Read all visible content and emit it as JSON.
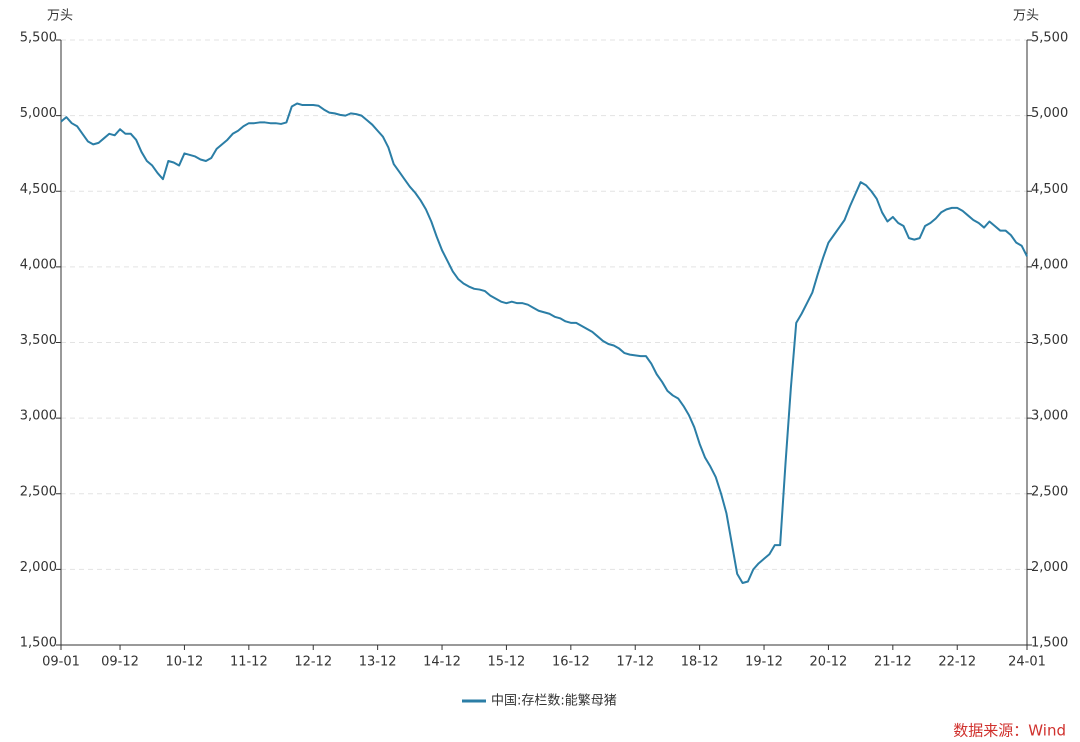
{
  "chart_data": {
    "type": "line",
    "y_unit": "万头",
    "y2_unit": "万头",
    "source": "数据来源：Wind",
    "categories": [
      "09-01",
      null,
      null,
      null,
      null,
      null,
      null,
      null,
      null,
      null,
      null,
      "09-12",
      null,
      null,
      null,
      null,
      null,
      null,
      null,
      null,
      null,
      null,
      null,
      "10-12",
      null,
      null,
      null,
      null,
      null,
      null,
      null,
      null,
      null,
      null,
      null,
      "11-12",
      null,
      null,
      null,
      null,
      null,
      null,
      null,
      null,
      null,
      null,
      null,
      "12-12",
      null,
      null,
      null,
      null,
      null,
      null,
      null,
      null,
      null,
      null,
      null,
      "13-12",
      null,
      null,
      null,
      null,
      null,
      null,
      null,
      null,
      null,
      null,
      null,
      "14-12",
      null,
      null,
      null,
      null,
      null,
      null,
      null,
      null,
      null,
      null,
      null,
      "15-12",
      null,
      null,
      null,
      null,
      null,
      null,
      null,
      null,
      null,
      null,
      null,
      "16-12",
      null,
      null,
      null,
      null,
      null,
      null,
      null,
      null,
      null,
      null,
      null,
      "17-12",
      null,
      null,
      null,
      null,
      null,
      null,
      null,
      null,
      null,
      null,
      null,
      "18-12",
      null,
      null,
      null,
      null,
      null,
      null,
      null,
      null,
      null,
      null,
      null,
      "19-12",
      null,
      null,
      null,
      null,
      null,
      null,
      null,
      null,
      null,
      null,
      null,
      "20-12",
      null,
      null,
      null,
      null,
      null,
      null,
      null,
      null,
      null,
      null,
      null,
      "21-12",
      null,
      null,
      null,
      null,
      null,
      null,
      null,
      null,
      null,
      null,
      null,
      "22-12",
      null,
      null,
      null,
      null,
      null,
      null,
      null,
      null,
      null,
      null,
      null,
      null,
      "24-01"
    ],
    "series": [
      {
        "name": "中国:存栏数:能繁母猪",
        "color": "#2b7ea6",
        "values": [
          4960,
          4990,
          4950,
          4930,
          4880,
          4830,
          4810,
          4820,
          4850,
          4880,
          4870,
          4910,
          4880,
          4880,
          4840,
          4760,
          4700,
          4670,
          4620,
          4580,
          4700,
          4690,
          4670,
          4750,
          4740,
          4730,
          4710,
          4700,
          4720,
          4780,
          4810,
          4840,
          4880,
          4900,
          4930,
          4950,
          4950,
          4955,
          4955,
          4950,
          4950,
          4945,
          4955,
          5060,
          5080,
          5070,
          5070,
          5070,
          5065,
          5040,
          5020,
          5015,
          5005,
          5000,
          5015,
          5010,
          5000,
          4970,
          4940,
          4900,
          4860,
          4790,
          4680,
          4630,
          4580,
          4530,
          4490,
          4440,
          4380,
          4300,
          4200,
          4110,
          4040,
          3970,
          3920,
          3890,
          3870,
          3855,
          3850,
          3840,
          3810,
          3790,
          3770,
          3760,
          3770,
          3760,
          3760,
          3750,
          3730,
          3710,
          3700,
          3690,
          3670,
          3660,
          3640,
          3630,
          3630,
          3610,
          3590,
          3570,
          3540,
          3510,
          3490,
          3480,
          3460,
          3430,
          3420,
          3415,
          3410,
          3410,
          3360,
          3290,
          3240,
          3180,
          3150,
          3130,
          3080,
          3020,
          2940,
          2830,
          2740,
          2680,
          2610,
          2500,
          2370,
          2170,
          1970,
          1910,
          1920,
          2000,
          2040,
          2070,
          2100,
          2160,
          2160,
          2700,
          3200,
          3630,
          3690,
          3760,
          3830,
          3950,
          4060,
          4160,
          4210,
          4260,
          4310,
          4400,
          4480,
          4560,
          4540,
          4500,
          4450,
          4360,
          4300,
          4330,
          4290,
          4270,
          4190,
          4180,
          4190,
          4270,
          4290,
          4320,
          4360,
          4380,
          4390,
          4390,
          4370,
          4340,
          4310,
          4290,
          4260,
          4300,
          4270,
          4240,
          4240,
          4210,
          4160,
          4140,
          4070
        ]
      }
    ],
    "ylim": [
      1500,
      5500
    ],
    "yticks": [
      {
        "value": 1500,
        "label": "1,500"
      },
      {
        "value": 2000,
        "label": "2,000"
      },
      {
        "value": 2500,
        "label": "2,500"
      },
      {
        "value": 3000,
        "label": "3,000"
      },
      {
        "value": 3500,
        "label": "3,500"
      },
      {
        "value": 4000,
        "label": "4,000"
      },
      {
        "value": 4500,
        "label": "4,500"
      },
      {
        "value": 5000,
        "label": "5,000"
      },
      {
        "value": 5500,
        "label": "5,500"
      }
    ],
    "y2lim": [
      1500,
      5500
    ],
    "y2ticks": [
      {
        "value": 1500,
        "label": "1,500"
      },
      {
        "value": 2000,
        "label": "2,000"
      },
      {
        "value": 2500,
        "label": "2,500"
      },
      {
        "value": 3000,
        "label": "3,000"
      },
      {
        "value": 3500,
        "label": "3,500"
      },
      {
        "value": 4000,
        "label": "4,000"
      },
      {
        "value": 4500,
        "label": "4,500"
      },
      {
        "value": 5000,
        "label": "5,000"
      },
      {
        "value": 5500,
        "label": "5,500"
      }
    ],
    "grid": true,
    "legend": "bottom",
    "source_color": "#d0312d"
  }
}
